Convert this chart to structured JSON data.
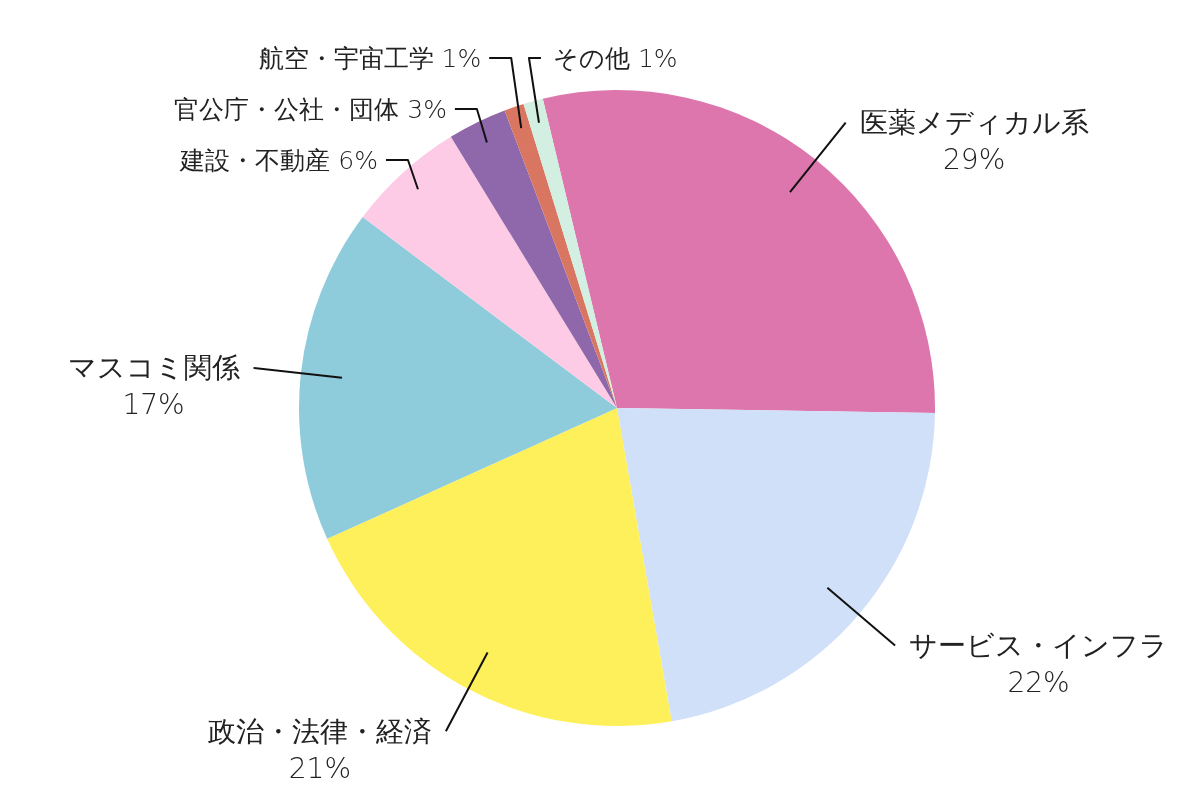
{
  "chart_data": {
    "type": "pie",
    "categories": [
      "医薬メディカル系",
      "サービス・インフラ",
      "政治・法律・経済",
      "マスコミ関係",
      "建設・不動産",
      "官公庁・公社・団体",
      "航空・宇宙工学",
      "その他"
    ],
    "values": [
      29,
      22,
      21,
      17,
      6,
      3,
      1,
      1
    ],
    "colors": [
      "#dc76ad",
      "#cfe0f8",
      "#fef05a",
      "#8ecbdb",
      "#fecbe6",
      "#8e68aa",
      "#d97662",
      "#d3efe1"
    ],
    "value_labels": [
      "29%",
      "22%",
      "21%",
      "17%",
      "6%",
      "3%",
      "1%",
      "1%"
    ]
  }
}
